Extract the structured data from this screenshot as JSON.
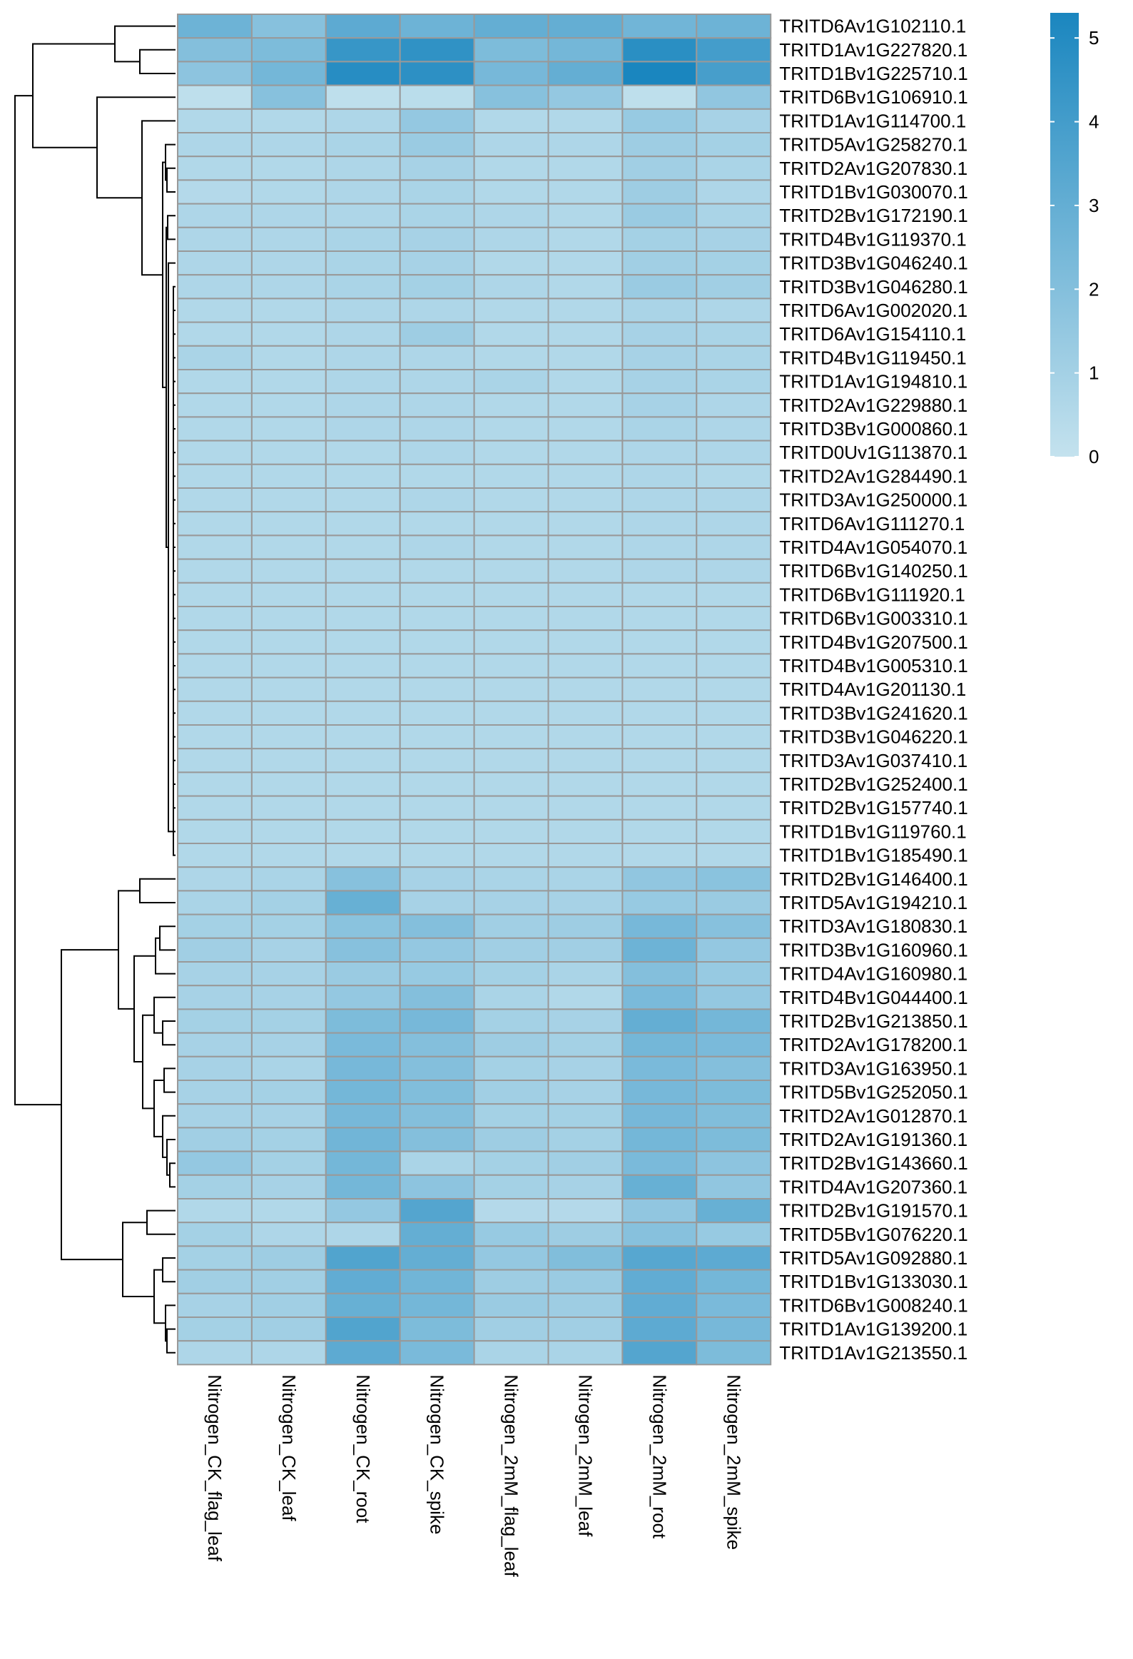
{
  "chart_data": {
    "type": "heatmap",
    "columns": [
      "Nitrogen_CK_flag_leaf",
      "Nitrogen_CK_leaf",
      "Nitrogen_CK_root",
      "Nitrogen_CK_spike",
      "Nitrogen_2mM_flag_leaf",
      "Nitrogen_2mM_leaf",
      "Nitrogen_2mM_root",
      "Nitrogen_2mM_spike"
    ],
    "rows": [
      "TRITD6Av1G102110.1",
      "TRITD1Av1G227820.1",
      "TRITD1Bv1G225710.1",
      "TRITD6Bv1G106910.1",
      "TRITD1Av1G114700.1",
      "TRITD5Av1G258270.1",
      "TRITD2Av1G207830.1",
      "TRITD1Bv1G030070.1",
      "TRITD2Bv1G172190.1",
      "TRITD4Bv1G119370.1",
      "TRITD3Bv1G046240.1",
      "TRITD3Bv1G046280.1",
      "TRITD6Av1G002020.1",
      "TRITD6Av1G154110.1",
      "TRITD4Bv1G119450.1",
      "TRITD1Av1G194810.1",
      "TRITD2Av1G229880.1",
      "TRITD3Bv1G000860.1",
      "TRITD0Uv1G113870.1",
      "TRITD2Av1G284490.1",
      "TRITD3Av1G250000.1",
      "TRITD6Av1G111270.1",
      "TRITD4Av1G054070.1",
      "TRITD6Bv1G140250.1",
      "TRITD6Bv1G111920.1",
      "TRITD6Bv1G003310.1",
      "TRITD4Bv1G207500.1",
      "TRITD4Bv1G005310.1",
      "TRITD4Av1G201130.1",
      "TRITD3Bv1G241620.1",
      "TRITD3Bv1G046220.1",
      "TRITD3Av1G037410.1",
      "TRITD2Bv1G252400.1",
      "TRITD2Bv1G157740.1",
      "TRITD1Bv1G119760.1",
      "TRITD1Bv1G185490.1",
      "TRITD2Bv1G146400.1",
      "TRITD5Av1G194210.1",
      "TRITD3Av1G180830.1",
      "TRITD3Bv1G160960.1",
      "TRITD4Av1G160980.1",
      "TRITD4Bv1G044400.1",
      "TRITD2Bv1G213850.1",
      "TRITD2Av1G178200.1",
      "TRITD3Av1G163950.1",
      "TRITD5Bv1G252050.1",
      "TRITD2Av1G012870.1",
      "TRITD2Av1G191360.1",
      "TRITD2Bv1G143660.1",
      "TRITD4Av1G207360.1",
      "TRITD2Bv1G191570.1",
      "TRITD5Bv1G076220.1",
      "TRITD5Av1G092880.1",
      "TRITD1Bv1G133030.1",
      "TRITD6Bv1G008240.1",
      "TRITD1Av1G139200.1",
      "TRITD1Av1G213550.1"
    ],
    "values": [
      [
        2.7,
        1.9,
        3.2,
        2.7,
        3.0,
        3.0,
        2.6,
        2.7
      ],
      [
        2.0,
        2.2,
        4.4,
        4.6,
        2.2,
        2.5,
        4.8,
        4.0
      ],
      [
        1.7,
        2.5,
        4.9,
        4.7,
        2.4,
        3.0,
        5.3,
        3.9
      ],
      [
        0.2,
        1.9,
        0.2,
        0.3,
        1.9,
        1.5,
        0.2,
        1.6
      ],
      [
        0.6,
        0.6,
        0.7,
        1.5,
        0.6,
        0.6,
        1.4,
        0.9
      ],
      [
        0.7,
        0.7,
        0.8,
        1.3,
        0.7,
        0.7,
        1.2,
        1.0
      ],
      [
        0.6,
        0.6,
        0.7,
        0.9,
        0.6,
        0.6,
        1.1,
        0.8
      ],
      [
        0.5,
        0.6,
        0.7,
        0.8,
        0.6,
        0.6,
        1.2,
        0.7
      ],
      [
        0.7,
        0.7,
        0.7,
        0.8,
        0.7,
        0.6,
        1.3,
        0.8
      ],
      [
        0.7,
        0.7,
        0.8,
        0.9,
        0.7,
        0.6,
        1.0,
        0.9
      ],
      [
        0.7,
        0.7,
        0.8,
        0.9,
        0.6,
        0.6,
        1.1,
        1.0
      ],
      [
        0.7,
        0.7,
        0.8,
        1.0,
        0.7,
        0.6,
        1.3,
        1.1
      ],
      [
        0.6,
        0.6,
        0.7,
        0.7,
        0.6,
        0.6,
        0.8,
        0.7
      ],
      [
        0.6,
        0.6,
        0.7,
        1.2,
        0.6,
        0.6,
        0.9,
        0.8
      ],
      [
        0.8,
        0.6,
        0.7,
        0.7,
        0.6,
        0.6,
        0.9,
        0.8
      ],
      [
        0.6,
        0.6,
        0.7,
        0.7,
        0.8,
        0.6,
        0.9,
        0.8
      ],
      [
        0.6,
        0.6,
        0.7,
        0.7,
        0.6,
        0.6,
        0.9,
        0.7
      ],
      [
        0.6,
        0.6,
        0.7,
        0.7,
        0.6,
        0.6,
        0.8,
        0.7
      ],
      [
        0.6,
        0.6,
        0.6,
        0.7,
        0.6,
        0.6,
        0.7,
        0.7
      ],
      [
        0.6,
        0.6,
        0.6,
        0.6,
        0.6,
        0.6,
        0.7,
        0.6
      ],
      [
        0.6,
        0.6,
        0.6,
        0.7,
        0.6,
        0.6,
        0.7,
        0.7
      ],
      [
        0.6,
        0.6,
        0.6,
        0.6,
        0.6,
        0.6,
        0.7,
        0.7
      ],
      [
        0.6,
        0.6,
        0.6,
        0.7,
        0.6,
        0.6,
        0.7,
        0.7
      ],
      [
        0.6,
        0.6,
        0.6,
        0.6,
        0.6,
        0.6,
        0.7,
        0.7
      ],
      [
        0.6,
        0.6,
        0.6,
        0.6,
        0.6,
        0.6,
        0.6,
        0.6
      ],
      [
        0.6,
        0.6,
        0.6,
        0.6,
        0.6,
        0.6,
        0.6,
        0.6
      ],
      [
        0.6,
        0.6,
        0.6,
        0.6,
        0.6,
        0.6,
        0.6,
        0.6
      ],
      [
        0.6,
        0.6,
        0.6,
        0.6,
        0.6,
        0.6,
        0.6,
        0.6
      ],
      [
        0.6,
        0.6,
        0.6,
        0.6,
        0.6,
        0.6,
        0.6,
        0.6
      ],
      [
        0.6,
        0.6,
        0.6,
        0.6,
        0.6,
        0.6,
        0.6,
        0.6
      ],
      [
        0.6,
        0.6,
        0.6,
        0.6,
        0.6,
        0.6,
        0.6,
        0.6
      ],
      [
        0.6,
        0.6,
        0.6,
        0.6,
        0.6,
        0.6,
        0.6,
        0.6
      ],
      [
        0.6,
        0.6,
        0.6,
        0.6,
        0.6,
        0.6,
        0.6,
        0.6
      ],
      [
        0.6,
        0.6,
        0.6,
        0.6,
        0.6,
        0.6,
        0.6,
        0.6
      ],
      [
        0.6,
        0.6,
        0.6,
        0.6,
        0.6,
        0.6,
        0.6,
        0.6
      ],
      [
        0.6,
        0.6,
        0.6,
        0.6,
        0.6,
        0.6,
        0.6,
        0.6
      ],
      [
        0.7,
        0.8,
        1.9,
        0.9,
        0.8,
        0.8,
        1.6,
        1.8
      ],
      [
        0.8,
        1.0,
        2.9,
        0.9,
        0.9,
        0.9,
        1.4,
        1.3
      ],
      [
        1.0,
        1.0,
        1.8,
        2.0,
        1.1,
        1.2,
        2.4,
        1.9
      ],
      [
        1.1,
        0.9,
        1.9,
        1.5,
        1.1,
        1.1,
        2.7,
        1.5
      ],
      [
        0.9,
        0.9,
        1.3,
        1.4,
        1.0,
        0.8,
        2.0,
        1.4
      ],
      [
        0.9,
        0.9,
        1.5,
        2.0,
        0.8,
        0.6,
        2.3,
        1.5
      ],
      [
        1.0,
        1.0,
        2.2,
        2.4,
        1.0,
        0.9,
        3.0,
        2.5
      ],
      [
        0.9,
        0.9,
        2.3,
        2.0,
        1.2,
        1.0,
        2.5,
        2.3
      ],
      [
        0.9,
        0.8,
        2.4,
        2.0,
        1.0,
        0.9,
        2.3,
        2.0
      ],
      [
        0.9,
        1.0,
        2.5,
        2.1,
        1.1,
        0.9,
        2.4,
        2.2
      ],
      [
        0.9,
        0.9,
        2.4,
        2.0,
        1.0,
        1.0,
        2.4,
        2.1
      ],
      [
        1.1,
        1.0,
        2.6,
        2.0,
        1.2,
        1.0,
        2.5,
        2.2
      ],
      [
        1.5,
        1.0,
        2.5,
        0.8,
        1.0,
        1.1,
        2.3,
        1.7
      ],
      [
        1.0,
        0.9,
        2.5,
        1.7,
        1.0,
        0.9,
        2.9,
        1.6
      ],
      [
        0.6,
        0.6,
        1.5,
        3.5,
        0.5,
        0.5,
        1.6,
        2.9
      ],
      [
        1.0,
        0.7,
        0.7,
        3.0,
        1.4,
        1.2,
        1.9,
        1.4
      ],
      [
        1.0,
        1.2,
        3.6,
        3.0,
        1.5,
        2.1,
        3.4,
        3.2
      ],
      [
        1.1,
        1.1,
        3.1,
        2.6,
        1.2,
        1.3,
        3.1,
        2.5
      ],
      [
        0.9,
        1.1,
        2.9,
        2.5,
        1.3,
        1.2,
        3.1,
        2.3
      ],
      [
        1.0,
        1.1,
        3.6,
        2.2,
        1.1,
        1.1,
        3.2,
        2.4
      ],
      [
        0.7,
        0.7,
        3.2,
        2.3,
        0.8,
        0.8,
        3.5,
        2.2
      ]
    ],
    "colorscale": {
      "min": 0,
      "max": 5.3,
      "low_color": "#c4e2ee",
      "high_color": "#1a86bf",
      "cell_border_color": "#999999"
    },
    "legend_ticks": [
      0,
      1,
      2,
      3,
      4,
      5
    ],
    "legend_placement": "top-right",
    "dendrogram": "rows"
  }
}
